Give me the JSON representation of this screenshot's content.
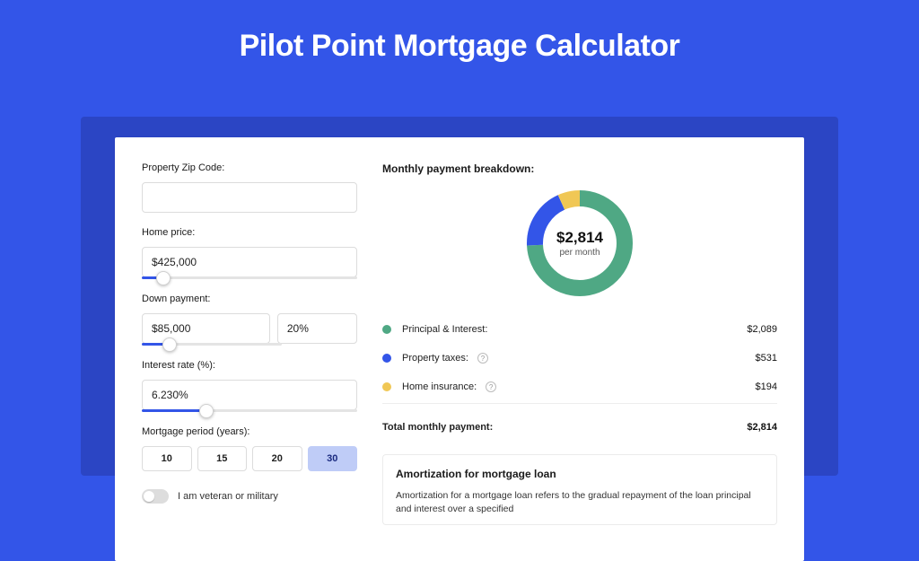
{
  "colors": {
    "page_bg": "#3355e8",
    "underlay": "#2b45c4",
    "card_bg": "#ffffff",
    "input_border": "#dcdcdc",
    "slider_track": "#e4e4e4",
    "slider_fill": "#3355e8",
    "period_active_bg": "#bfccf7",
    "text_primary": "#1a1a1a",
    "swatch_principal": "#4fa884",
    "swatch_taxes": "#3355e8",
    "swatch_insurance": "#f0c755"
  },
  "header": {
    "title": "Pilot Point Mortgage Calculator"
  },
  "form": {
    "zip": {
      "label": "Property Zip Code:",
      "value": ""
    },
    "home_price": {
      "label": "Home price:",
      "value": "$425,000",
      "slider_pct": 10
    },
    "down_payment": {
      "label": "Down payment:",
      "value": "$85,000",
      "pct_value": "20%",
      "slider_pct": 20
    },
    "interest_rate": {
      "label": "Interest rate (%):",
      "value": "6.230%",
      "slider_pct": 30
    },
    "period": {
      "label": "Mortgage period (years):",
      "options": [
        "10",
        "15",
        "20",
        "30"
      ],
      "active_index": 3
    },
    "veteran": {
      "label": "I am veteran or military",
      "checked": false
    }
  },
  "breakdown": {
    "title": "Monthly payment breakdown:",
    "donut": {
      "amount": "$2,814",
      "sub": "per month",
      "segments": [
        {
          "key": "principal",
          "pct": 74.2,
          "color": "#4fa884"
        },
        {
          "key": "taxes",
          "pct": 18.9,
          "color": "#3355e8"
        },
        {
          "key": "insurance",
          "pct": 6.9,
          "color": "#f0c755"
        }
      ],
      "stroke": 18
    },
    "rows": [
      {
        "key": "principal",
        "label": "Principal & Interest:",
        "value": "$2,089",
        "swatch": "#4fa884",
        "help": false
      },
      {
        "key": "taxes",
        "label": "Property taxes:",
        "value": "$531",
        "swatch": "#3355e8",
        "help": true
      },
      {
        "key": "insurance",
        "label": "Home insurance:",
        "value": "$194",
        "swatch": "#f0c755",
        "help": true
      }
    ],
    "total": {
      "label": "Total monthly payment:",
      "value": "$2,814"
    }
  },
  "amortization": {
    "title": "Amortization for mortgage loan",
    "text": "Amortization for a mortgage loan refers to the gradual repayment of the loan principal and interest over a specified"
  }
}
